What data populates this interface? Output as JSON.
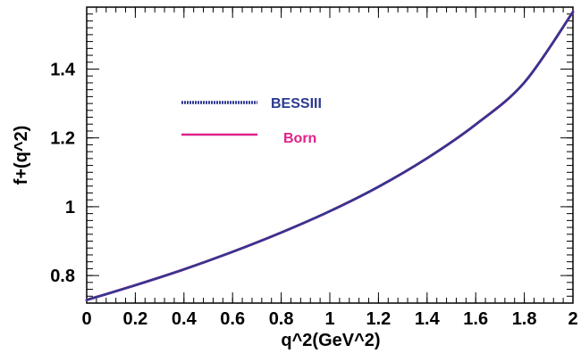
{
  "chart_data": {
    "type": "line",
    "title": "",
    "xlabel": "q^2(GeV^2)",
    "ylabel": "f+(q^2)",
    "xlim": [
      0,
      2
    ],
    "ylim": [
      0.72,
      1.58
    ],
    "grid": false,
    "legend_position": "upper-left",
    "x_ticks": [
      {
        "value": 0,
        "label": "0"
      },
      {
        "value": 0.2,
        "label": "0.2"
      },
      {
        "value": 0.4,
        "label": "0.4"
      },
      {
        "value": 0.6,
        "label": "0.6"
      },
      {
        "value": 0.8,
        "label": "0.8"
      },
      {
        "value": 1.0,
        "label": "1"
      },
      {
        "value": 1.2,
        "label": "1.2"
      },
      {
        "value": 1.4,
        "label": "1.4"
      },
      {
        "value": 1.6,
        "label": "1.6"
      },
      {
        "value": 1.8,
        "label": "1.8"
      },
      {
        "value": 2.0,
        "label": "2"
      }
    ],
    "y_ticks": [
      {
        "value": 0.8,
        "label": "0.8"
      },
      {
        "value": 1.0,
        "label": "1"
      },
      {
        "value": 1.2,
        "label": "1.2"
      },
      {
        "value": 1.4,
        "label": "1.4"
      }
    ],
    "x": [
      0,
      0.2,
      0.4,
      0.6,
      0.8,
      1.0,
      1.2,
      1.4,
      1.6,
      1.8,
      2.0
    ],
    "series": [
      {
        "name": "BESSIII",
        "color": "#2b3990",
        "style": "dotted-thick",
        "values": [
          0.729,
          0.772,
          0.818,
          0.869,
          0.925,
          0.987,
          1.058,
          1.141,
          1.239,
          1.361,
          1.566
        ]
      },
      {
        "name": "Born",
        "color": "#e0218a",
        "style": "solid",
        "values": [
          0.729,
          0.772,
          0.818,
          0.869,
          0.925,
          0.987,
          1.058,
          1.141,
          1.239,
          1.361,
          1.566
        ]
      }
    ]
  }
}
